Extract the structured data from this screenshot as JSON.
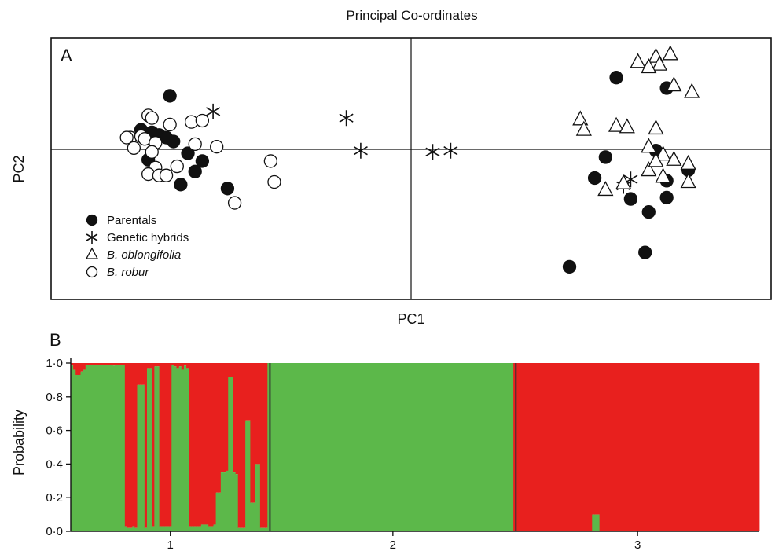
{
  "chart_data": [
    {
      "panel": "A",
      "type": "scatter",
      "title": "Principal Co-ordinates",
      "xlabel": "PC1",
      "ylabel": "PC2",
      "xlim": [
        -1.0,
        1.0
      ],
      "ylim": [
        -1.0,
        1.0
      ],
      "grid": false,
      "origin_lines": true,
      "legend_placement": "bottom-left",
      "series": [
        {
          "name": "Parentals",
          "marker": "filled-circle",
          "points": [
            [
              -0.67,
              0.41
            ],
            [
              -0.75,
              0.15
            ],
            [
              -0.72,
              0.13
            ],
            [
              -0.7,
              0.11
            ],
            [
              -0.68,
              0.09
            ],
            [
              -0.66,
              0.06
            ],
            [
              -0.73,
              -0.08
            ],
            [
              -0.62,
              -0.03
            ],
            [
              -0.58,
              -0.09
            ],
            [
              -0.6,
              -0.17
            ],
            [
              -0.64,
              -0.27
            ],
            [
              -0.51,
              -0.3
            ],
            [
              0.57,
              0.55
            ],
            [
              0.71,
              0.47
            ],
            [
              0.54,
              -0.06
            ],
            [
              0.68,
              -0.01
            ],
            [
              0.77,
              -0.16
            ],
            [
              0.51,
              -0.22
            ],
            [
              0.71,
              -0.24
            ],
            [
              0.61,
              -0.38
            ],
            [
              0.66,
              -0.48
            ],
            [
              0.71,
              -0.37
            ],
            [
              0.65,
              -0.79
            ],
            [
              0.44,
              -0.9
            ]
          ]
        },
        {
          "name": "Genetic hybrids",
          "marker": "asterisk",
          "points": [
            [
              -0.55,
              0.29
            ],
            [
              -0.18,
              0.24
            ],
            [
              -0.14,
              -0.01
            ],
            [
              0.06,
              -0.02
            ],
            [
              0.11,
              -0.01
            ],
            [
              0.61,
              -0.23
            ],
            [
              0.59,
              -0.28
            ]
          ]
        },
        {
          "name": "B. oblongifolia",
          "marker": "open-triangle",
          "points": [
            [
              0.68,
              0.71
            ],
            [
              0.69,
              0.65
            ],
            [
              0.72,
              0.73
            ],
            [
              0.63,
              0.67
            ],
            [
              0.66,
              0.63
            ],
            [
              0.73,
              0.49
            ],
            [
              0.78,
              0.44
            ],
            [
              0.47,
              0.23
            ],
            [
              0.48,
              0.15
            ],
            [
              0.57,
              0.18
            ],
            [
              0.6,
              0.17
            ],
            [
              0.68,
              0.16
            ],
            [
              0.66,
              0.02
            ],
            [
              0.7,
              -0.04
            ],
            [
              0.73,
              -0.08
            ],
            [
              0.77,
              -0.11
            ],
            [
              0.66,
              -0.16
            ],
            [
              0.7,
              -0.21
            ],
            [
              0.59,
              -0.26
            ],
            [
              0.54,
              -0.31
            ],
            [
              0.77,
              -0.25
            ],
            [
              0.68,
              -0.09
            ]
          ]
        },
        {
          "name": "B. robur",
          "marker": "open-circle",
          "points": [
            [
              -0.73,
              0.26
            ],
            [
              -0.72,
              0.24
            ],
            [
              -0.78,
              0.09
            ],
            [
              -0.75,
              0.1
            ],
            [
              -0.74,
              0.08
            ],
            [
              -0.71,
              0.05
            ],
            [
              -0.77,
              0.01
            ],
            [
              -0.72,
              -0.02
            ],
            [
              -0.71,
              -0.14
            ],
            [
              -0.73,
              -0.19
            ],
            [
              -0.7,
              -0.2
            ],
            [
              -0.68,
              -0.2
            ],
            [
              -0.65,
              -0.13
            ],
            [
              -0.61,
              0.21
            ],
            [
              -0.58,
              0.22
            ],
            [
              -0.6,
              0.04
            ],
            [
              -0.54,
              0.02
            ],
            [
              -0.79,
              0.09
            ],
            [
              -0.39,
              -0.09
            ],
            [
              -0.38,
              -0.25
            ],
            [
              -0.49,
              -0.41
            ],
            [
              -0.67,
              0.19
            ]
          ]
        }
      ],
      "legend": [
        {
          "label": "Parentals",
          "italic": false
        },
        {
          "label": "Genetic hybrids",
          "italic": false
        },
        {
          "label": "B. oblongifolia",
          "italic": true
        },
        {
          "label": "B. robur",
          "italic": true
        }
      ]
    },
    {
      "panel": "B",
      "type": "stacked-bar",
      "ylabel": "Probability",
      "ylim": [
        0,
        1
      ],
      "yticks": [
        "0·0",
        "0·2",
        "0·4",
        "0·6",
        "0·8",
        "1·0"
      ],
      "groups": [
        "1",
        "2",
        "3"
      ],
      "colors": {
        "green": "#5cb84a",
        "red": "#e8201e"
      },
      "series_order": [
        "green",
        "red"
      ],
      "green_fraction": [
        0.985,
        0.96,
        0.93,
        0.93,
        0.95,
        0.96,
        0.99,
        0.99,
        0.99,
        0.99,
        0.99,
        0.99,
        0.99,
        0.99,
        0.99,
        0.99,
        0.99,
        0.985,
        0.99,
        0.99,
        0.99,
        0.99,
        0.03,
        0.02,
        0.02,
        0.03,
        0.02,
        0.87,
        0.87,
        0.87,
        0.02,
        0.97,
        0.97,
        0.03,
        0.98,
        0.98,
        0.03,
        0.03,
        0.03,
        0.03,
        0.03,
        0.99,
        0.98,
        0.97,
        0.98,
        0.96,
        0.985,
        0.97,
        0.03,
        0.03,
        0.03,
        0.03,
        0.03,
        0.04,
        0.04,
        0.04,
        0.03,
        0.03,
        0.04,
        0.23,
        0.23,
        0.35,
        0.35,
        0.36,
        0.92,
        0.92,
        0.35,
        0.34,
        0.02,
        0.02,
        0.02,
        0.66,
        0.66,
        0.17,
        0.17,
        0.4,
        0.4,
        0.02,
        0.02,
        0.02,
        1.0,
        1.0,
        1.0,
        1.0,
        1.0,
        1.0,
        1.0,
        1.0,
        1.0,
        1.0,
        1.0,
        1.0,
        1.0,
        1.0,
        1.0,
        1.0,
        1.0,
        1.0,
        1.0,
        1.0,
        1.0,
        1.0,
        1.0,
        1.0,
        1.0,
        1.0,
        1.0,
        1.0,
        1.0,
        1.0,
        1.0,
        1.0,
        1.0,
        1.0,
        1.0,
        1.0,
        1.0,
        1.0,
        1.0,
        1.0,
        1.0,
        1.0,
        1.0,
        1.0,
        1.0,
        1.0,
        1.0,
        1.0,
        1.0,
        1.0,
        1.0,
        1.0,
        1.0,
        1.0,
        1.0,
        1.0,
        1.0,
        1.0,
        1.0,
        1.0,
        1.0,
        1.0,
        1.0,
        1.0,
        1.0,
        1.0,
        1.0,
        1.0,
        1.0,
        1.0,
        1.0,
        1.0,
        1.0,
        1.0,
        1.0,
        1.0,
        1.0,
        1.0,
        1.0,
        1.0,
        1.0,
        1.0,
        1.0,
        1.0,
        1.0,
        1.0,
        1.0,
        1.0,
        1.0,
        1.0,
        1.0,
        1.0,
        1.0,
        1.0,
        1.0,
        1.0,
        1.0,
        1.0,
        1.0,
        1.0,
        0.0,
        0.0,
        0.0,
        0.0,
        0.0,
        0.0,
        0.0,
        0.0,
        0.0,
        0.0,
        0.0,
        0.0,
        0.0,
        0.0,
        0.0,
        0.0,
        0.0,
        0.0,
        0.0,
        0.0,
        0.0,
        0.0,
        0.0,
        0.0,
        0.0,
        0.0,
        0.0,
        0.0,
        0.0,
        0.0,
        0.0,
        0.0,
        0.1,
        0.1,
        0.1,
        0.0,
        0.0,
        0.0,
        0.0,
        0.0,
        0.0,
        0.0,
        0.0,
        0.0,
        0.0,
        0.0,
        0.0,
        0.0,
        0.0,
        0.0,
        0.0,
        0.0,
        0.0,
        0.0,
        0.0,
        0.0,
        0.0,
        0.0,
        0.0,
        0.0,
        0.0,
        0.0,
        0.0,
        0.0,
        0.0,
        0.0,
        0.0,
        0.0,
        0.0,
        0.0,
        0.0,
        0.0,
        0.0,
        0.0,
        0.0,
        0.0,
        0.0,
        0.0,
        0.0,
        0.0,
        0.0,
        0.0,
        0.0,
        0.0,
        0.0,
        0.0,
        0.0,
        0.0,
        0.0,
        0.0,
        0.0,
        0.0,
        0.0,
        0.0,
        0.0,
        0.0,
        0.0,
        0.0,
        0.0,
        0.0
      ]
    }
  ]
}
